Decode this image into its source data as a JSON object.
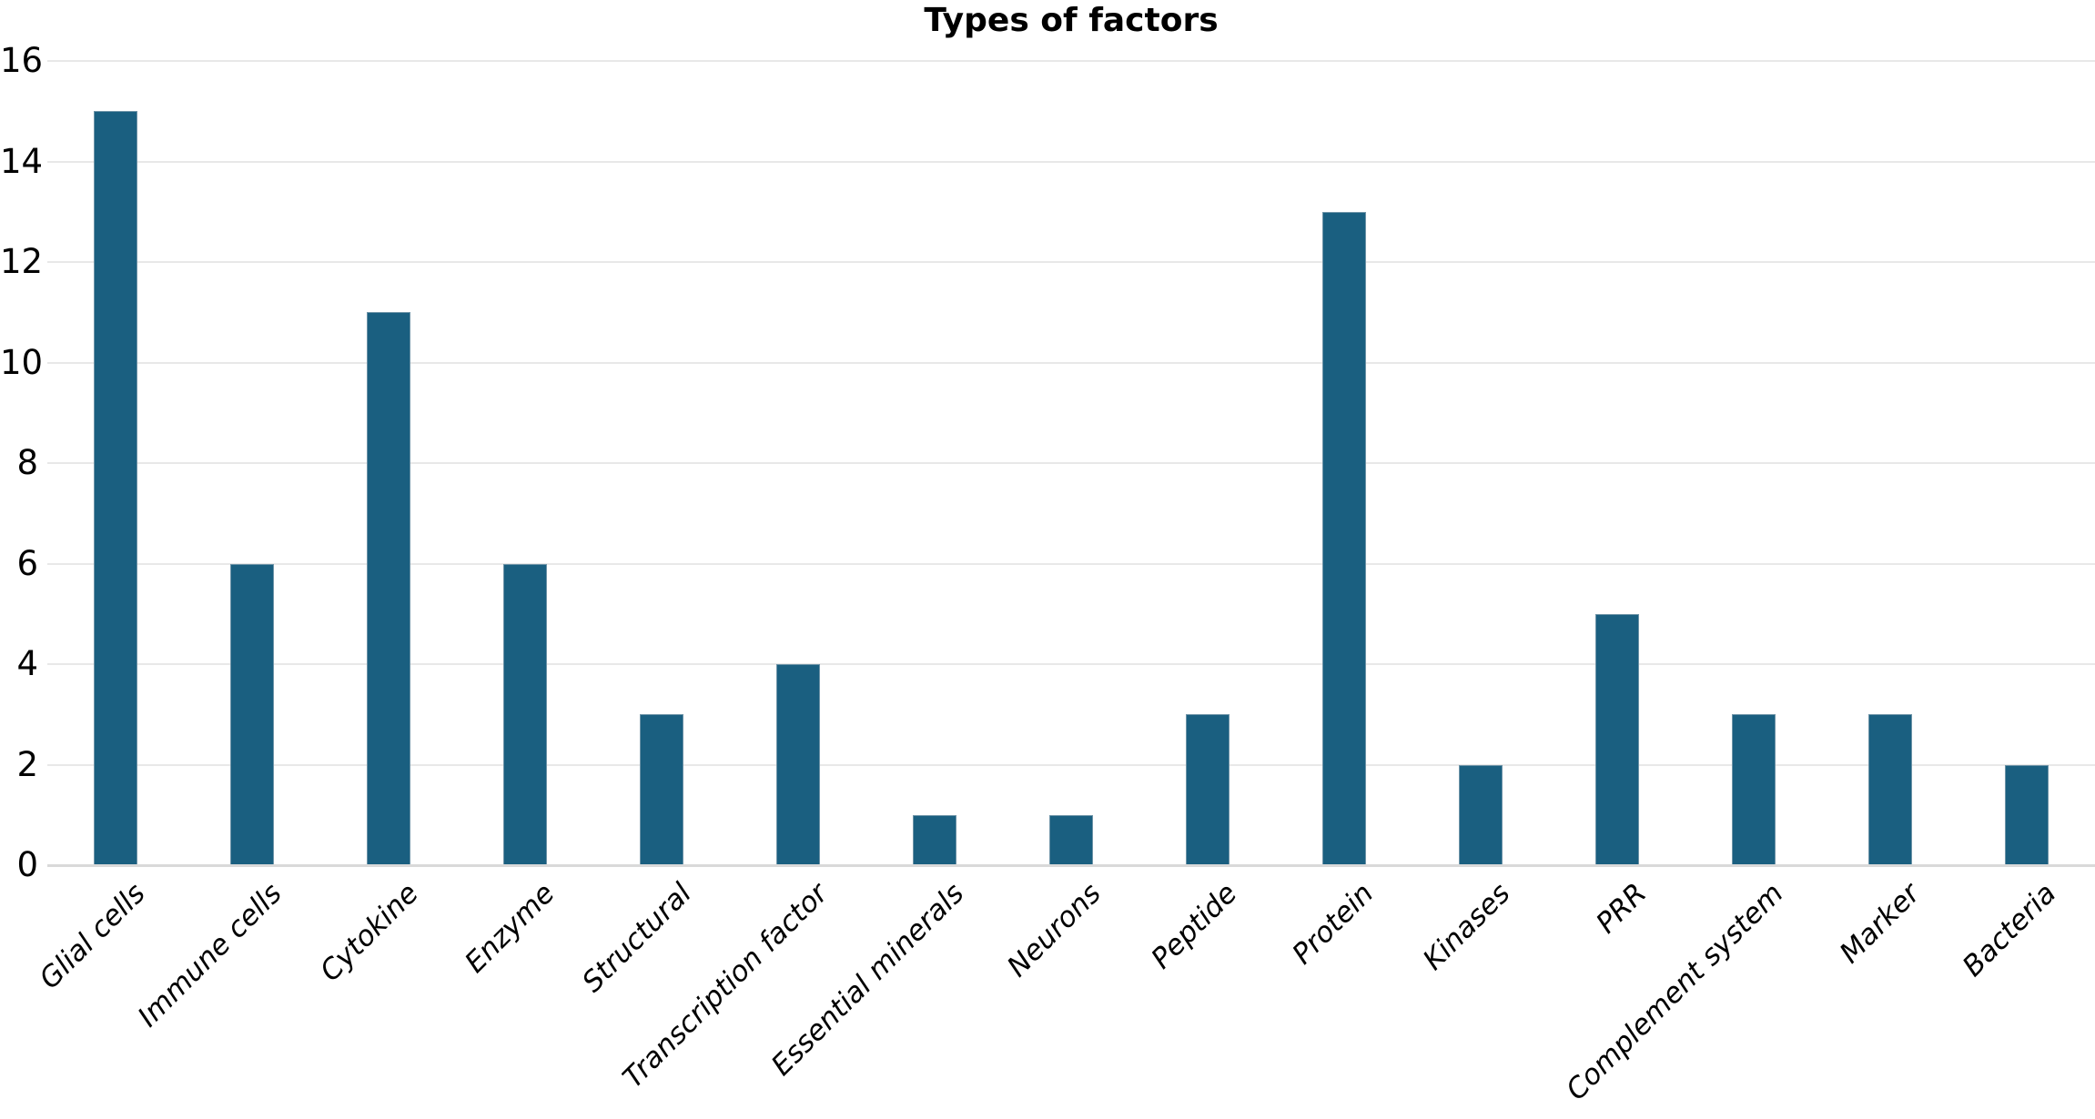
{
  "title": "Types of factors",
  "colors": {
    "bar": "#1a5f80",
    "gridline": "#e8e8e8",
    "axis_line": "#d9d9d9",
    "text": "#000000",
    "background": "#ffffff"
  },
  "chart_data": {
    "type": "bar",
    "title": "Types of factors",
    "categories": [
      "Glial cells",
      "Immune cells",
      "Cytokine",
      "Enzyme",
      "Structural",
      "Transcription factor",
      "Essential minerals",
      "Neurons",
      "Peptide",
      "Protein",
      "Kinases",
      "PRR",
      "Complement system",
      "Marker",
      "Bacteria"
    ],
    "values": [
      15,
      6,
      11,
      6,
      3,
      4,
      1,
      1,
      3,
      13,
      2,
      5,
      3,
      3,
      2
    ],
    "xlabel": "",
    "ylabel": "",
    "ylim": [
      0,
      16
    ],
    "yticks": [
      0,
      2,
      4,
      6,
      8,
      10,
      12,
      14,
      16
    ],
    "grid": "horizontal",
    "legend": "none",
    "bar_color": "#1a5f80",
    "xtick_style": "italic rotated 45deg"
  }
}
